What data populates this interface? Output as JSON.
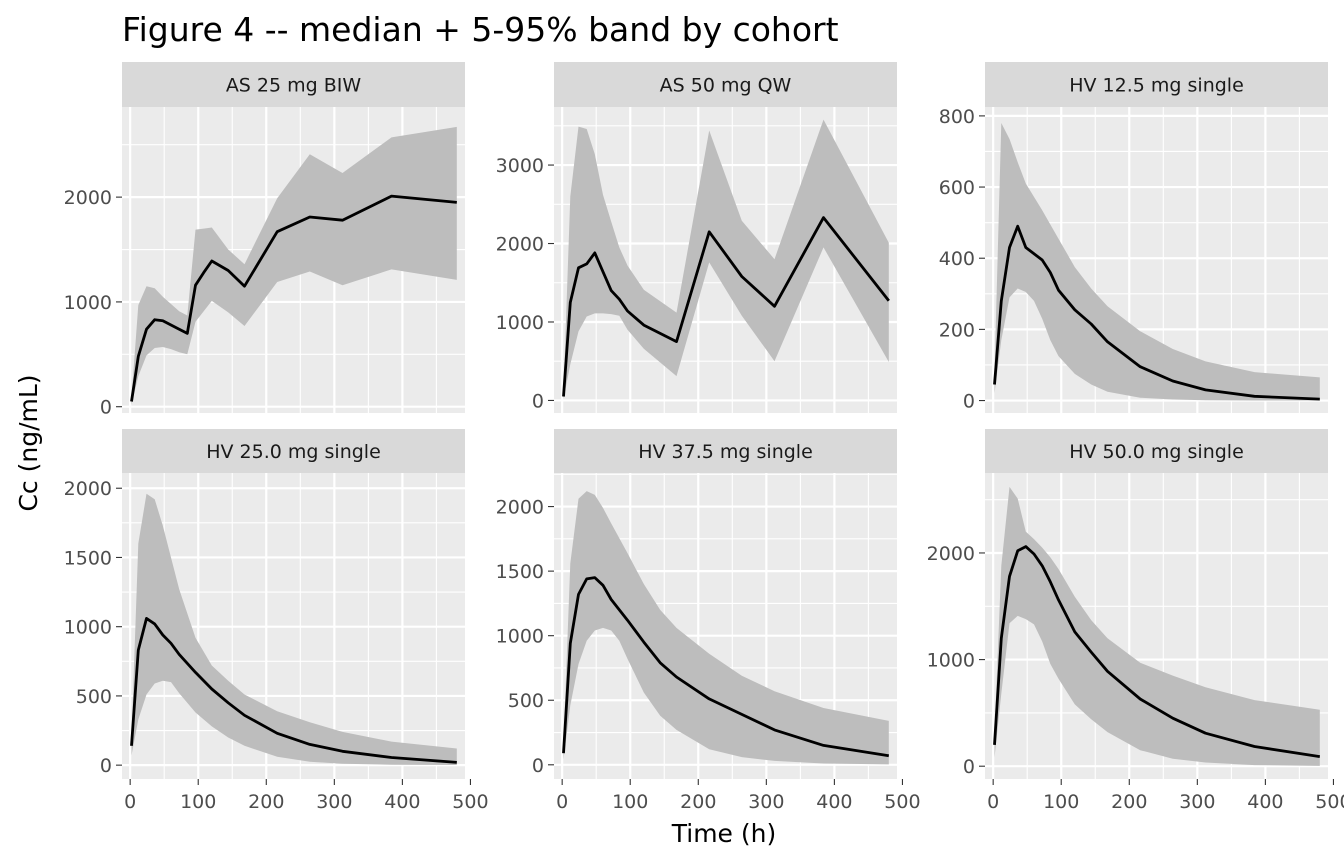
{
  "chart_data": {
    "type": "line",
    "title": "Figure 4 -- median + 5-95% band by cohort",
    "xlabel": "Time (h)",
    "ylabel": "Cc (ng/mL)",
    "xlim": [
      -12,
      492
    ],
    "x_ticks": [
      0,
      100,
      200,
      300,
      400,
      500
    ],
    "grid": true,
    "colors": {
      "panel_bg": "#EBEBEB",
      "strip_bg": "#D9D9D9",
      "band": "#BDBDBD",
      "median": "#000000",
      "grid": "#FFFFFF"
    },
    "panels": [
      {
        "label": "AS 25 mg BIW",
        "ylim": [
          -60,
          2860
        ],
        "y_ticks": [
          0,
          1000,
          2000
        ],
        "series": [
          {
            "name": "median",
            "x": [
              2,
              12,
              24,
              36,
              48,
              60,
              72,
              84,
              96,
              108,
              120,
              144,
              168,
              216,
              264,
              312,
              384,
              480
            ],
            "y": [
              50,
              480,
              740,
              830,
              820,
              780,
              740,
              700,
              1160,
              1280,
              1390,
              1300,
              1150,
              1670,
              1810,
              1780,
              2010,
              1950
            ]
          },
          {
            "name": "p5",
            "x": [
              2,
              12,
              24,
              36,
              48,
              60,
              72,
              84,
              96,
              108,
              120,
              144,
              168,
              216,
              264,
              312,
              384,
              480
            ],
            "y": [
              20,
              290,
              490,
              560,
              570,
              550,
              520,
              500,
              810,
              910,
              1010,
              900,
              770,
              1190,
              1290,
              1160,
              1310,
              1210
            ]
          },
          {
            "name": "p95",
            "x": [
              2,
              12,
              24,
              36,
              48,
              60,
              72,
              84,
              96,
              108,
              120,
              144,
              168,
              216,
              264,
              312,
              384,
              480
            ],
            "y": [
              90,
              970,
              1150,
              1130,
              1050,
              980,
              910,
              870,
              1690,
              1700,
              1710,
              1500,
              1360,
              1990,
              2410,
              2230,
              2570,
              2670
            ]
          }
        ]
      },
      {
        "label": "AS 50 mg QW",
        "ylim": [
          -160,
          3740
        ],
        "y_ticks": [
          0,
          1000,
          2000,
          3000
        ],
        "series": [
          {
            "name": "median",
            "x": [
              2,
              12,
              24,
              36,
              48,
              60,
              72,
              84,
              96,
              120,
              168,
              216,
              264,
              312,
              384,
              480
            ],
            "y": [
              50,
              1250,
              1690,
              1740,
              1880,
              1640,
              1400,
              1290,
              1140,
              960,
              750,
              2150,
              1580,
              1200,
              2330,
              1270
            ]
          },
          {
            "name": "p5",
            "x": [
              2,
              12,
              24,
              36,
              48,
              60,
              72,
              84,
              96,
              120,
              168,
              216,
              264,
              312,
              384,
              480
            ],
            "y": [
              20,
              460,
              880,
              1070,
              1110,
              1110,
              1100,
              1080,
              900,
              660,
              310,
              1760,
              1080,
              500,
              1950,
              490
            ]
          },
          {
            "name": "p95",
            "x": [
              2,
              12,
              24,
              36,
              48,
              60,
              72,
              84,
              96,
              120,
              168,
              216,
              264,
              312,
              384,
              480
            ],
            "y": [
              110,
              2600,
              3490,
              3460,
              3140,
              2620,
              2280,
              1950,
              1720,
              1410,
              1120,
              3440,
              2290,
              1800,
              3580,
              2010
            ]
          }
        ]
      },
      {
        "label": "HV 12.5 mg single",
        "ylim": [
          -35,
          825
        ],
        "y_ticks": [
          0,
          200,
          400,
          600,
          800
        ],
        "series": [
          {
            "name": "median",
            "x": [
              2,
              12,
              24,
              36,
              48,
              72,
              84,
              96,
              120,
              144,
              168,
              216,
              264,
              312,
              384,
              480
            ],
            "y": [
              45,
              280,
              430,
              490,
              430,
              395,
              360,
              310,
              255,
              215,
              165,
              95,
              55,
              30,
              12,
              4
            ]
          },
          {
            "name": "p5",
            "x": [
              2,
              12,
              24,
              36,
              48,
              60,
              72,
              84,
              96,
              120,
              144,
              168,
              216,
              264,
              312,
              384,
              480
            ],
            "y": [
              20,
              170,
              290,
              315,
              305,
              280,
              230,
              170,
              125,
              75,
              45,
              25,
              8,
              3,
              1,
              0,
              0
            ]
          },
          {
            "name": "p95",
            "x": [
              2,
              12,
              24,
              36,
              48,
              72,
              96,
              120,
              144,
              168,
              216,
              264,
              312,
              384,
              480
            ],
            "y": [
              80,
              780,
              735,
              670,
              610,
              535,
              455,
              375,
              315,
              265,
              195,
              145,
              110,
              80,
              65
            ]
          }
        ]
      },
      {
        "label": "HV 25.0 mg single",
        "ylim": [
          -100,
          2110
        ],
        "y_ticks": [
          0,
          500,
          1000,
          1500,
          2000
        ],
        "series": [
          {
            "name": "median",
            "x": [
              2,
              12,
              24,
              36,
              48,
              60,
              72,
              96,
              120,
              144,
              168,
              216,
              264,
              312,
              384,
              480
            ],
            "y": [
              140,
              830,
              1060,
              1020,
              940,
              880,
              800,
              670,
              550,
              450,
              360,
              230,
              150,
              100,
              55,
              20
            ]
          },
          {
            "name": "p5",
            "x": [
              2,
              12,
              24,
              36,
              48,
              60,
              72,
              96,
              120,
              144,
              168,
              216,
              264,
              312,
              384,
              480
            ],
            "y": [
              70,
              330,
              510,
              590,
              610,
              600,
              520,
              380,
              280,
              200,
              140,
              60,
              25,
              10,
              3,
              1
            ]
          },
          {
            "name": "p95",
            "x": [
              2,
              12,
              24,
              36,
              48,
              60,
              72,
              96,
              120,
              144,
              168,
              216,
              264,
              312,
              384,
              480
            ],
            "y": [
              200,
              1600,
              1960,
              1920,
              1730,
              1500,
              1270,
              920,
              720,
              610,
              510,
              390,
              310,
              240,
              170,
              120
            ]
          }
        ]
      },
      {
        "label": "HV 37.5 mg single",
        "ylim": [
          -110,
          2260
        ],
        "y_ticks": [
          0,
          500,
          1000,
          1500,
          2000
        ],
        "series": [
          {
            "name": "median",
            "x": [
              2,
              12,
              24,
              36,
              48,
              60,
              72,
              96,
              120,
              144,
              168,
              216,
              264,
              312,
              384,
              480
            ],
            "y": [
              90,
              940,
              1320,
              1440,
              1450,
              1390,
              1280,
              1120,
              950,
              790,
              680,
              510,
              390,
              270,
              150,
              70
            ]
          },
          {
            "name": "p5",
            "x": [
              2,
              12,
              24,
              36,
              48,
              60,
              72,
              84,
              96,
              120,
              144,
              168,
              216,
              264,
              312,
              384,
              480
            ],
            "y": [
              40,
              460,
              780,
              960,
              1040,
              1060,
              1040,
              960,
              820,
              560,
              380,
              270,
              120,
              60,
              30,
              10,
              3
            ]
          },
          {
            "name": "p95",
            "x": [
              2,
              12,
              24,
              36,
              48,
              60,
              72,
              96,
              120,
              144,
              168,
              216,
              264,
              312,
              384,
              480
            ],
            "y": [
              160,
              1560,
              2060,
              2120,
              2090,
              1990,
              1870,
              1640,
              1400,
              1200,
              1060,
              860,
              690,
              570,
              440,
              340
            ]
          }
        ]
      },
      {
        "label": "HV 50.0 mg single",
        "ylim": [
          -120,
          2750
        ],
        "y_ticks": [
          0,
          1000,
          2000
        ],
        "series": [
          {
            "name": "median",
            "x": [
              2,
              12,
              24,
              36,
              48,
              60,
              72,
              84,
              96,
              120,
              144,
              168,
              216,
              264,
              312,
              384,
              480
            ],
            "y": [
              200,
              1200,
              1780,
              2020,
              2060,
              1990,
              1880,
              1730,
              1560,
              1260,
              1070,
              890,
              630,
              450,
              310,
              185,
              90
            ]
          },
          {
            "name": "p5",
            "x": [
              2,
              12,
              24,
              36,
              48,
              60,
              72,
              84,
              96,
              120,
              144,
              168,
              216,
              264,
              312,
              384,
              480
            ],
            "y": [
              80,
              680,
              1340,
              1410,
              1380,
              1330,
              1170,
              960,
              820,
              580,
              440,
              320,
              150,
              70,
              35,
              10,
              3
            ]
          },
          {
            "name": "p95",
            "x": [
              2,
              12,
              24,
              36,
              48,
              60,
              72,
              84,
              96,
              120,
              144,
              168,
              216,
              264,
              312,
              384,
              480
            ],
            "y": [
              300,
              1880,
              2620,
              2510,
              2200,
              2130,
              2050,
              1960,
              1850,
              1590,
              1370,
              1200,
              970,
              850,
              740,
              620,
              530
            ]
          }
        ]
      }
    ]
  }
}
